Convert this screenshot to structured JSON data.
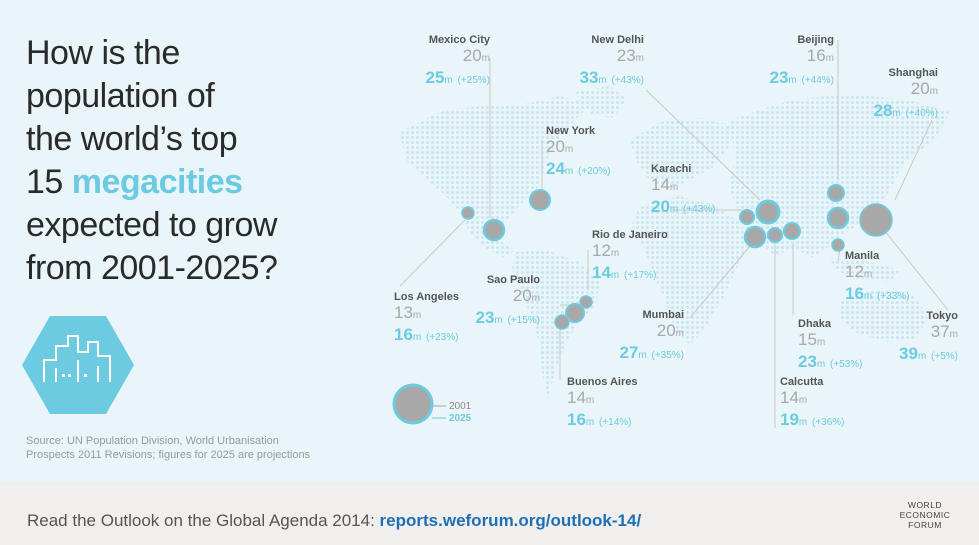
{
  "headline": {
    "line1": "How is the",
    "line2": "population of",
    "line3": "the world’s top",
    "line4_pre": "15 ",
    "line4_highlight": "megacities",
    "line5": "expected to grow",
    "line6": "from 2001-2025?"
  },
  "icon": "city-skyline-hexagon-icon",
  "source": {
    "line1": "Source: UN Population Division, World Urbanisation",
    "line2": "Prospects 2011 Revisions; figures for 2025 are projections"
  },
  "legend": {
    "label_2001": "2001",
    "label_2025": "2025"
  },
  "unit": "m",
  "cities": [
    {
      "id": "mexico-city",
      "name": "Mexico City",
      "pop2001": "20",
      "pop2025": "25",
      "growth": "(+25%)"
    },
    {
      "id": "new-delhi",
      "name": "New Delhi",
      "pop2001": "23",
      "pop2025": "33",
      "growth": "(+43%)"
    },
    {
      "id": "beijing",
      "name": "Beijing",
      "pop2001": "16",
      "pop2025": "23",
      "growth": "(+44%)"
    },
    {
      "id": "shanghai",
      "name": "Shanghai",
      "pop2001": "20",
      "pop2025": "28",
      "growth": "(+40%)"
    },
    {
      "id": "new-york",
      "name": "New York",
      "pop2001": "20",
      "pop2025": "24",
      "growth": "(+20%)"
    },
    {
      "id": "karachi",
      "name": "Karachi",
      "pop2001": "14",
      "pop2025": "20",
      "growth": "(+43%)"
    },
    {
      "id": "rio-de-janeiro",
      "name": "Rio de Janeiro",
      "pop2001": "12",
      "pop2025": "14",
      "growth": "(+17%)"
    },
    {
      "id": "sao-paulo",
      "name": "Sao Paulo",
      "pop2001": "20",
      "pop2025": "23",
      "growth": "(+15%)"
    },
    {
      "id": "los-angeles",
      "name": "Los Angeles",
      "pop2001": "13",
      "pop2025": "16",
      "growth": "(+23%)"
    },
    {
      "id": "manila",
      "name": "Manila",
      "pop2001": "12",
      "pop2025": "16",
      "growth": "(+33%)"
    },
    {
      "id": "tokyo",
      "name": "Tokyo",
      "pop2001": "37",
      "pop2025": "39",
      "growth": "(+5%)"
    },
    {
      "id": "mumbai",
      "name": "Mumbai",
      "pop2001": "20",
      "pop2025": "27",
      "growth": "(+35%)"
    },
    {
      "id": "dhaka",
      "name": "Dhaka",
      "pop2001": "15",
      "pop2025": "23",
      "growth": "(+53%)"
    },
    {
      "id": "buenos-aires",
      "name": "Buenos Aires",
      "pop2001": "14",
      "pop2025": "16",
      "growth": "(+14%)"
    },
    {
      "id": "calcutta",
      "name": "Calcutta",
      "pop2001": "14",
      "pop2025": "19",
      "growth": "(+36%)"
    }
  ],
  "footer": {
    "text": "Read the Outlook on the Global Agenda 2014: ",
    "link": "reports.weforum.org/outlook-14/"
  },
  "logo": {
    "line1": "WORLD",
    "line2": "ECONOMIC",
    "line3": "FORUM"
  },
  "colors": {
    "accent": "#6ccbe0",
    "gray": "#a8a8a8",
    "link": "#1f6fb5",
    "background": "#e9f5f9"
  }
}
